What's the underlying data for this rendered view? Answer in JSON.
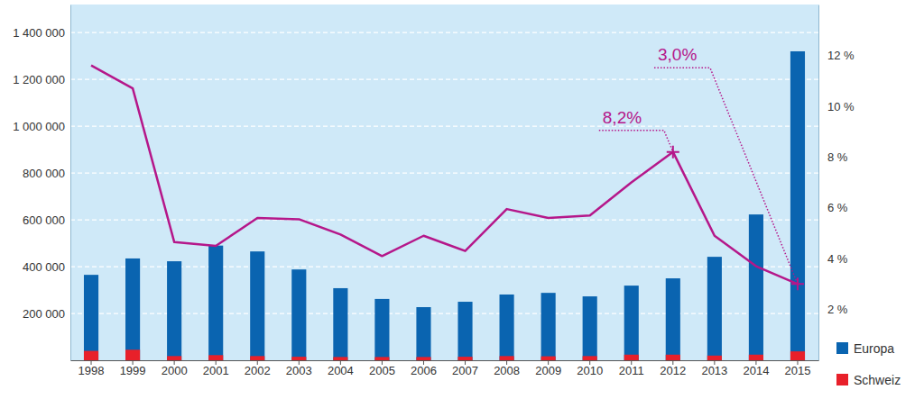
{
  "chart_data": {
    "type": "bar",
    "categories": [
      "1998",
      "1999",
      "2000",
      "2001",
      "2002",
      "2003",
      "2004",
      "2005",
      "2006",
      "2007",
      "2008",
      "2009",
      "2010",
      "2011",
      "2012",
      "2013",
      "2014",
      "2015"
    ],
    "series": [
      {
        "name": "Europa",
        "color": "#0a64b0",
        "type": "bar",
        "values": [
          365000,
          435000,
          423000,
          490000,
          465000,
          388000,
          308000,
          262000,
          227000,
          250000,
          281000,
          288000,
          273000,
          319000,
          350000,
          442000,
          623000,
          1320000
        ]
      },
      {
        "name": "Schweiz",
        "color": "#e8202a",
        "type": "bar",
        "values": [
          40000,
          45000,
          18000,
          22000,
          18000,
          15000,
          14000,
          14000,
          14000,
          15000,
          18000,
          17000,
          18000,
          24000,
          24000,
          20000,
          24000,
          38000
        ]
      },
      {
        "color": "#b5178a",
        "type": "line",
        "axis": "y2",
        "values": [
          11.6,
          10.7,
          4.65,
          4.5,
          5.6,
          5.55,
          4.95,
          4.1,
          4.9,
          4.3,
          5.95,
          5.6,
          5.7,
          7.0,
          8.2,
          4.9,
          3.7,
          3.0
        ]
      }
    ],
    "ylim": [
      0,
      1520000
    ],
    "yticks": [
      {
        "value": 200000,
        "label": "200 000"
      },
      {
        "value": 400000,
        "label": "400 000"
      },
      {
        "value": 600000,
        "label": "600 000"
      },
      {
        "value": 800000,
        "label": "800 000"
      },
      {
        "value": 1000000,
        "label": "1 000 000"
      },
      {
        "value": 1200000,
        "label": "1 200 000"
      },
      {
        "value": 1400000,
        "label": "1 400 000"
      }
    ],
    "y2lim": [
      0,
      14
    ],
    "y2ticks": [
      {
        "value": 2,
        "label": "2 %"
      },
      {
        "value": 4,
        "label": "4 %"
      },
      {
        "value": 6,
        "label": "6 %"
      },
      {
        "value": 8,
        "label": "8 %"
      },
      {
        "value": 10,
        "label": "10 %"
      },
      {
        "value": 12,
        "label": "12 %"
      }
    ],
    "annotations": [
      {
        "text": "8,2%",
        "category": "2012",
        "y": 8.2
      },
      {
        "text": "3,0%",
        "category": "2015",
        "y": 3.0
      }
    ],
    "grid": true,
    "legend": "bottom-right"
  }
}
